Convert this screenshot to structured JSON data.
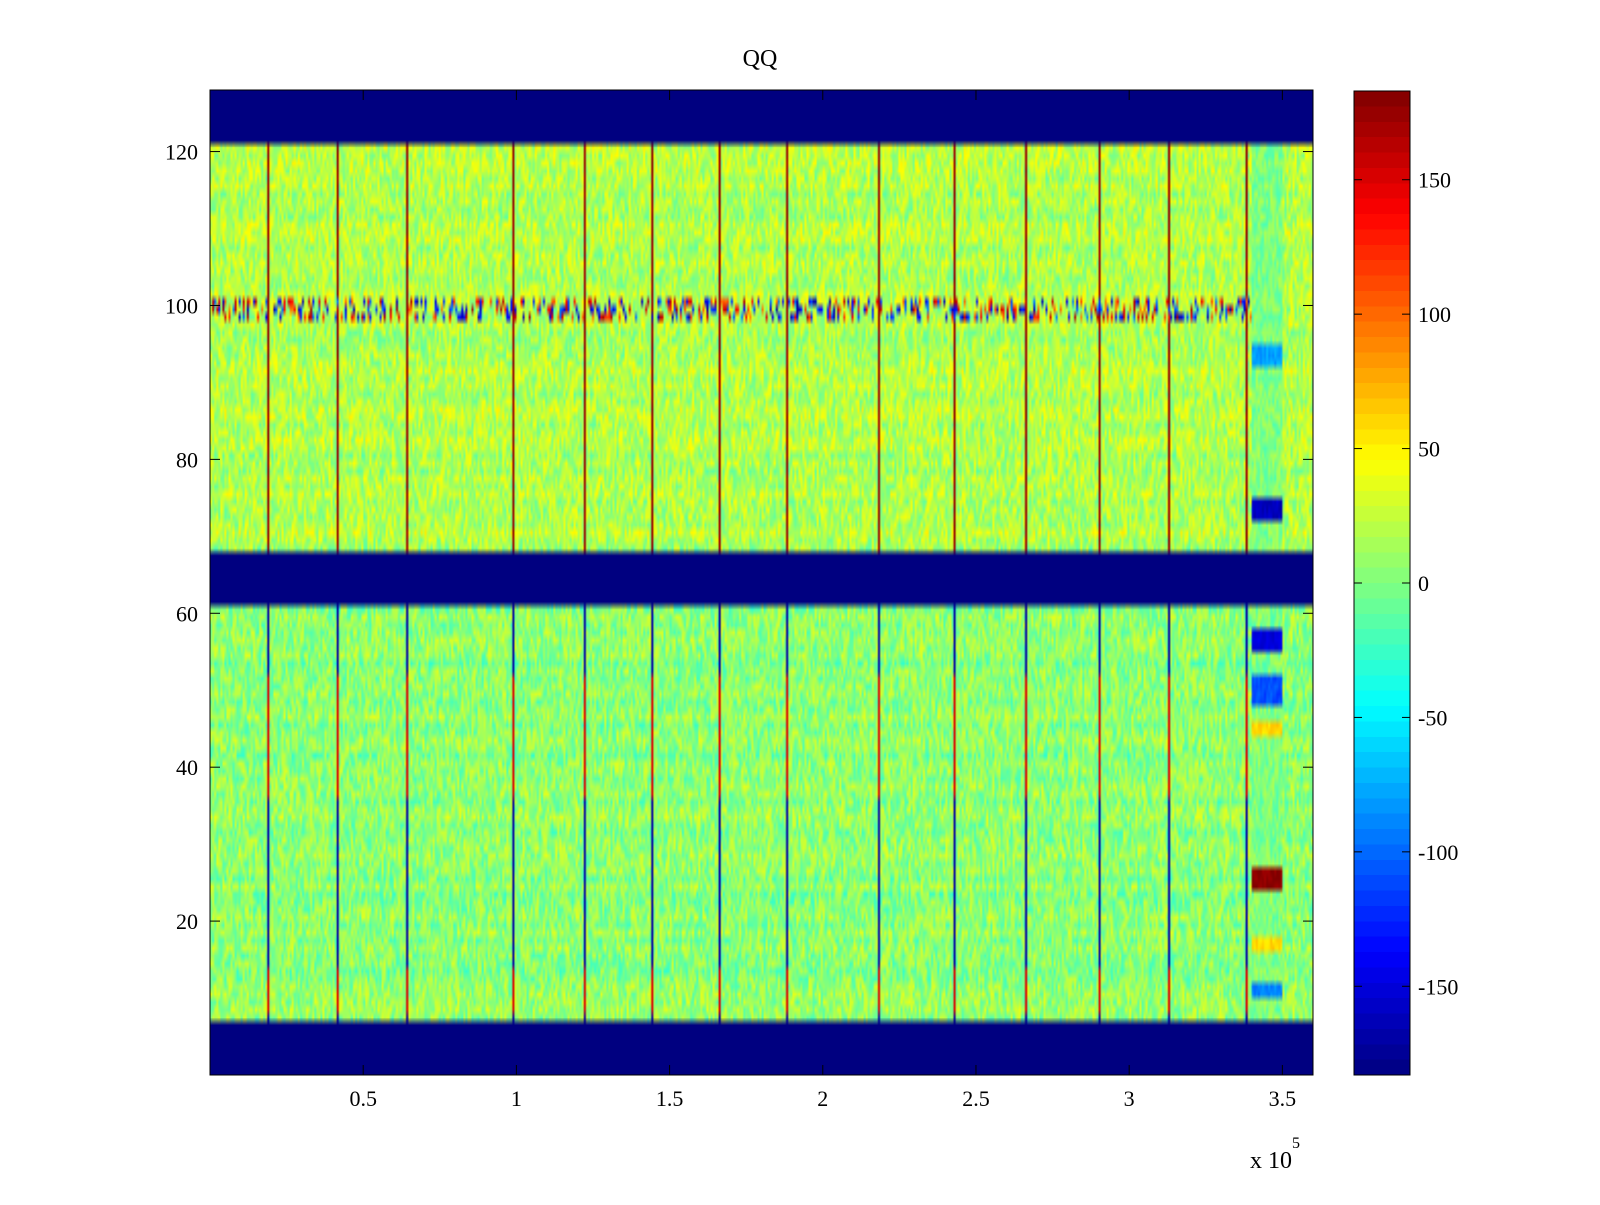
{
  "chart_data": {
    "type": "heatmap",
    "title": "QQ",
    "xlabel": "",
    "ylabel": "",
    "x_exponent_label": "x 10",
    "x_exponent_power": "5",
    "xlim": [
      0,
      360000
    ],
    "ylim": [
      0,
      128
    ],
    "x_ticks": [
      {
        "value": 50000,
        "label": "0.5"
      },
      {
        "value": 100000,
        "label": "1"
      },
      {
        "value": 150000,
        "label": "1.5"
      },
      {
        "value": 200000,
        "label": "2"
      },
      {
        "value": 250000,
        "label": "2.5"
      },
      {
        "value": 300000,
        "label": "3"
      },
      {
        "value": 350000,
        "label": "3.5"
      }
    ],
    "y_ticks": [
      {
        "value": 20,
        "label": "20"
      },
      {
        "value": 40,
        "label": "40"
      },
      {
        "value": 60,
        "label": "60"
      },
      {
        "value": 80,
        "label": "80"
      },
      {
        "value": 100,
        "label": "100"
      },
      {
        "value": 120,
        "label": "120"
      }
    ],
    "colorbar": {
      "colormap": "jet",
      "clim": [
        -183,
        183
      ],
      "ticks": [
        {
          "value": 150,
          "label": "150"
        },
        {
          "value": 100,
          "label": "100"
        },
        {
          "value": 50,
          "label": "50"
        },
        {
          "value": 0,
          "label": "0"
        },
        {
          "value": -50,
          "label": "-50"
        },
        {
          "value": -100,
          "label": "-100"
        },
        {
          "value": -150,
          "label": "-150"
        }
      ]
    },
    "saturated_bands_y": [
      [
        0,
        7.5
      ],
      [
        61.5,
        68.5
      ],
      [
        121.5,
        128
      ]
    ],
    "saturated_band_value": -183,
    "background_level_upper": 18,
    "background_level_lower": 5,
    "vertical_lines_x": [
      19000,
      41500,
      64000,
      99000,
      122000,
      144000,
      166000,
      188000,
      218000,
      243000,
      266000,
      290000,
      313000,
      338000
    ],
    "row_100_burst_y": [
      98.5,
      101
    ],
    "edge_region_x": [
      340000,
      350000
    ],
    "edge_blobs": [
      {
        "y": [
          24,
          27
        ],
        "value": 180
      },
      {
        "y": [
          55,
          58
        ],
        "value": -150
      },
      {
        "y": [
          48,
          52
        ],
        "value": -110
      },
      {
        "y": [
          44,
          46
        ],
        "value": 60
      },
      {
        "y": [
          72,
          75
        ],
        "value": -160
      },
      {
        "y": [
          92,
          95
        ],
        "value": -80
      },
      {
        "y": [
          10,
          12
        ],
        "value": -90
      },
      {
        "y": [
          16,
          18
        ],
        "value": 60
      }
    ]
  }
}
